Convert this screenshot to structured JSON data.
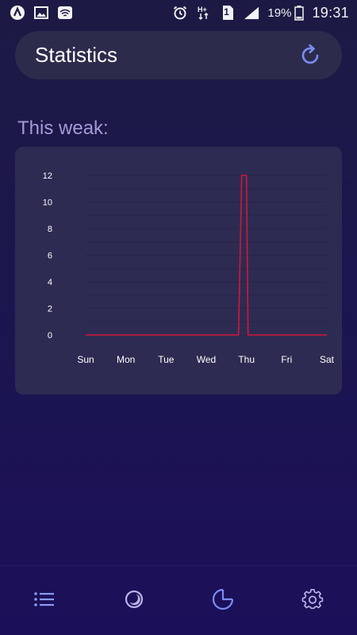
{
  "status_bar": {
    "battery_percent": "19%",
    "time": "19:31",
    "sim_slot": "1",
    "icons": [
      "app-icon",
      "image-icon",
      "wifi-icon",
      "alarm-icon",
      "data-transfer-icon",
      "sim-icon",
      "signal-icon",
      "battery-icon"
    ]
  },
  "header": {
    "title": "Statistics",
    "refresh_icon": "refresh-icon"
  },
  "section": {
    "title": "This weak:"
  },
  "colors": {
    "accent": "#7b8cf0",
    "line": "#d0183a",
    "card": "#2e2b52",
    "header": "#2c2b4b",
    "section_title": "#a59ad6"
  },
  "chart_data": {
    "type": "line",
    "categories": [
      "Sun",
      "Mon",
      "Tue",
      "Wed",
      "Thu",
      "Fri",
      "Sat"
    ],
    "series": [
      {
        "values": [
          0,
          0,
          0,
          0,
          12,
          0,
          0
        ]
      }
    ],
    "y_ticks": [
      "0",
      "2",
      "4",
      "6",
      "8",
      "10",
      "12"
    ],
    "ylim": [
      0,
      12
    ],
    "grid": true,
    "legend": "none"
  },
  "bottom_nav": {
    "items": [
      {
        "icon": "list-icon",
        "active": false
      },
      {
        "icon": "moon-icon",
        "active": false
      },
      {
        "icon": "pie-chart-icon",
        "active": true
      },
      {
        "icon": "gear-icon",
        "active": false
      }
    ]
  }
}
